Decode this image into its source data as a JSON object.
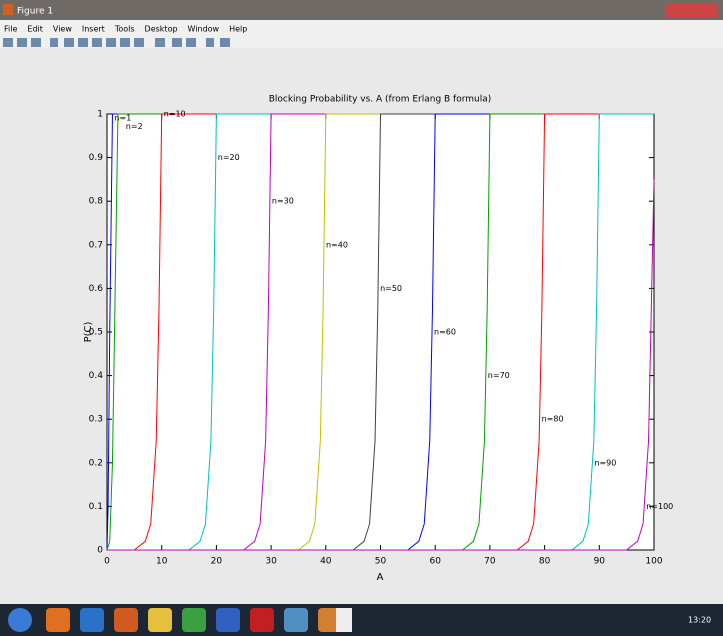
{
  "window": {
    "title": "Figure 1",
    "menu": [
      "File",
      "Edit",
      "View",
      "Insert",
      "Tools",
      "Desktop",
      "Window",
      "Help"
    ],
    "clock": "13:20"
  },
  "chart_data": {
    "type": "line",
    "title": "Blocking Probability vs. A (from Erlang B formula)",
    "x_label": "A",
    "y_label": "P(C)",
    "xlim": [
      0,
      100
    ],
    "ylim": [
      0,
      1
    ],
    "xticks": [
      0,
      10,
      20,
      30,
      40,
      50,
      60,
      70,
      80,
      90,
      100
    ],
    "yticks": [
      0,
      0.1,
      0.2,
      0.3,
      0.4,
      0.5,
      0.6,
      0.7,
      0.8,
      0.9,
      1
    ],
    "series": [
      {
        "name": "n=1",
        "color": "#0000ff",
        "x": [
          0,
          0.2,
          0.5,
          1,
          100
        ],
        "values": [
          0,
          0.1,
          0.5,
          1,
          1
        ]
      },
      {
        "name": "n=2",
        "color": "#00a000",
        "x": [
          0,
          0.5,
          1,
          1.5,
          2,
          100
        ],
        "values": [
          0,
          0.02,
          0.2,
          0.6,
          1,
          1
        ]
      },
      {
        "name": "n=10",
        "color": "#ff0000",
        "x": [
          0,
          5,
          7,
          8,
          9,
          9.5,
          10,
          100
        ],
        "values": [
          0,
          0,
          0.02,
          0.06,
          0.25,
          0.55,
          1,
          1
        ]
      },
      {
        "name": "n=20",
        "color": "#00c0c0",
        "x": [
          0,
          15,
          17,
          18,
          19,
          19.5,
          20,
          100
        ],
        "values": [
          0,
          0,
          0.02,
          0.06,
          0.25,
          0.55,
          1,
          1
        ]
      },
      {
        "name": "n=30",
        "color": "#c000c0",
        "x": [
          0,
          25,
          27,
          28,
          29,
          29.5,
          30,
          100
        ],
        "values": [
          0,
          0,
          0.02,
          0.06,
          0.25,
          0.55,
          1,
          1
        ]
      },
      {
        "name": "n=40",
        "color": "#c0c000",
        "x": [
          0,
          35,
          37,
          38,
          39,
          39.5,
          40,
          100
        ],
        "values": [
          0,
          0,
          0.02,
          0.06,
          0.25,
          0.55,
          1,
          1
        ]
      },
      {
        "name": "n=50",
        "color": "#404040",
        "x": [
          0,
          45,
          47,
          48,
          49,
          49.5,
          50,
          100
        ],
        "values": [
          0,
          0,
          0.02,
          0.06,
          0.25,
          0.55,
          1,
          1
        ]
      },
      {
        "name": "n=60",
        "color": "#0000ff",
        "x": [
          0,
          55,
          57,
          58,
          59,
          59.5,
          60,
          100
        ],
        "values": [
          0,
          0,
          0.02,
          0.06,
          0.25,
          0.55,
          1,
          1
        ]
      },
      {
        "name": "n=70",
        "color": "#00a000",
        "x": [
          0,
          65,
          67,
          68,
          69,
          69.5,
          70,
          100
        ],
        "values": [
          0,
          0,
          0.02,
          0.06,
          0.25,
          0.55,
          1,
          1
        ]
      },
      {
        "name": "n=80",
        "color": "#ff0000",
        "x": [
          0,
          75,
          77,
          78,
          79,
          79.5,
          80,
          100
        ],
        "values": [
          0,
          0,
          0.02,
          0.06,
          0.25,
          0.55,
          1,
          1
        ]
      },
      {
        "name": "n=90",
        "color": "#00c0c0",
        "x": [
          0,
          85,
          87,
          88,
          89,
          89.5,
          90,
          100
        ],
        "values": [
          0,
          0,
          0.02,
          0.06,
          0.25,
          0.55,
          1,
          1
        ]
      },
      {
        "name": "n=100",
        "color": "#c000c0",
        "x": [
          0,
          95,
          97,
          98,
          99,
          99.5,
          100
        ],
        "values": [
          0,
          0,
          0.02,
          0.06,
          0.25,
          0.55,
          0.85
        ]
      }
    ]
  }
}
